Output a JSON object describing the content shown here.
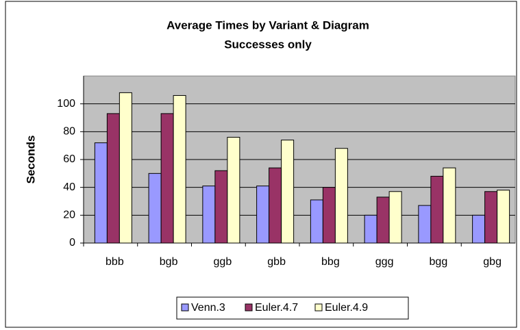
{
  "chart_data": {
    "type": "bar",
    "title": "Average Times by Variant & Diagram",
    "subtitle": "Successes only",
    "y_label": "Seconds",
    "categories": [
      "bbb",
      "bgb",
      "ggb",
      "gbb",
      "bbg",
      "ggg",
      "bgg",
      "gbg"
    ],
    "series": [
      {
        "name": "Venn.3",
        "color": "#9999ff",
        "values": [
          72,
          50,
          41,
          41,
          31,
          20,
          27,
          20
        ]
      },
      {
        "name": "Euler.4.7",
        "color": "#993366",
        "values": [
          93,
          93,
          52,
          54,
          40,
          33,
          48,
          37
        ]
      },
      {
        "name": "Euler.4.9",
        "color": "#ffffcc",
        "values": [
          108,
          106,
          76,
          74,
          68,
          37,
          54,
          38
        ]
      }
    ],
    "ylim": [
      0,
      120
    ],
    "yticks": [
      0,
      20,
      40,
      60,
      80,
      100
    ],
    "grid": true,
    "legend": "bottom"
  }
}
